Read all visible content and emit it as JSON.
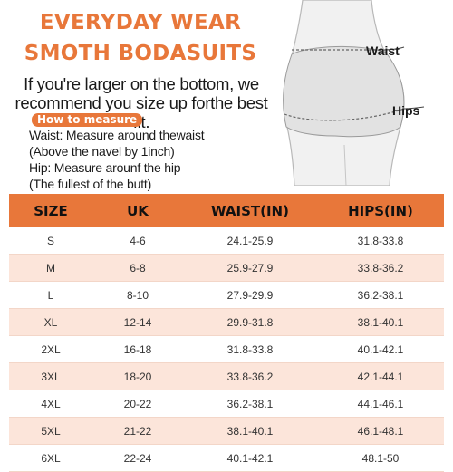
{
  "header": {
    "title_line1": "EVERYDAY WEAR",
    "title_line2": "SMOTH BODASUITS"
  },
  "advice": {
    "line1": "If you're larger on the bottom, we",
    "line2": "recommend you size up forthe best fit."
  },
  "how_to_measure": {
    "badge": "How to measure",
    "waist": "Waist: Measure around thewaist",
    "waist_note": "(Above the navel by 1inch)",
    "hip": "Hip: Measure arounf the hip",
    "hip_note": "(The fullest of the butt)"
  },
  "figure": {
    "waist_label": "Waist",
    "hips_label": "Hips"
  },
  "colors": {
    "accent": "#e8773a",
    "row_tint": "#fce5da"
  },
  "table": {
    "headers": [
      "SIZE",
      "UK",
      "WAIST(IN)",
      "HIPS(IN)"
    ],
    "rows": [
      [
        "S",
        "4-6",
        "24.1-25.9",
        "31.8-33.8"
      ],
      [
        "M",
        "6-8",
        "25.9-27.9",
        "33.8-36.2"
      ],
      [
        "L",
        "8-10",
        "27.9-29.9",
        "36.2-38.1"
      ],
      [
        "XL",
        "12-14",
        "29.9-31.8",
        "38.1-40.1"
      ],
      [
        "2XL",
        "16-18",
        "31.8-33.8",
        "40.1-42.1"
      ],
      [
        "3XL",
        "18-20",
        "33.8-36.2",
        "42.1-44.1"
      ],
      [
        "4XL",
        "20-22",
        "36.2-38.1",
        "44.1-46.1"
      ],
      [
        "5XL",
        "21-22",
        "38.1-40.1",
        "46.1-48.1"
      ],
      [
        "6XL",
        "22-24",
        "40.1-42.1",
        "48.1-50"
      ]
    ]
  }
}
